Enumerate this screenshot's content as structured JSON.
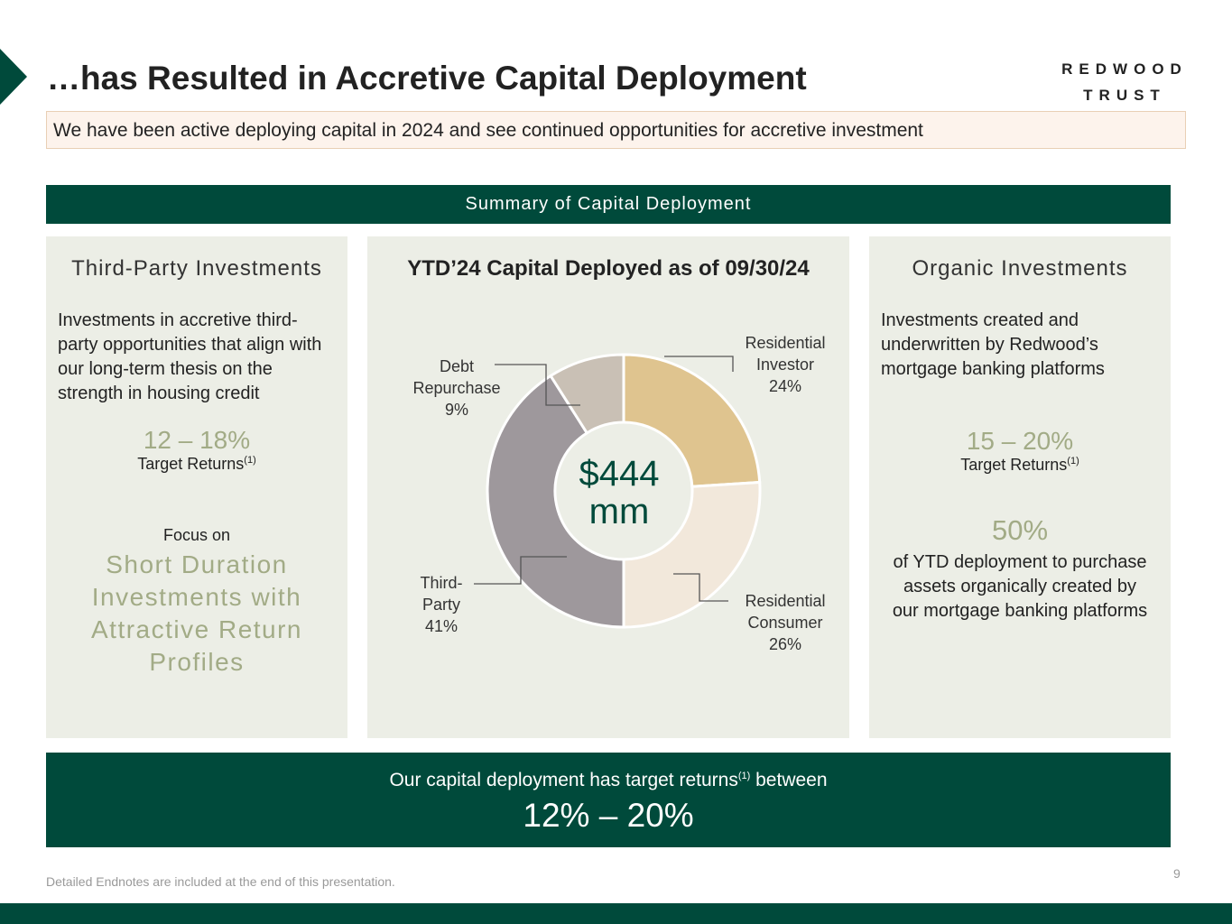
{
  "header": {
    "title": "…has Resulted in Accretive Capital Deployment",
    "logo": "REDWOOD TRUST",
    "logo_line1": "REDWOOD",
    "logo_line2": "TRUST",
    "subtitle": "We have been active deploying capital in 2024 and see continued opportunities for accretive investment"
  },
  "band": "Summary of Capital Deployment",
  "left": {
    "heading": "Third-Party Investments",
    "desc": "Investments in accretive third-party opportunities that align with our long-term thesis on the strength in housing credit",
    "range": "12 – 18%",
    "target": "Target Returns",
    "note": "(1)",
    "focus": "Focus on",
    "focus_big": "Short Duration Investments with Attractive Return Profiles"
  },
  "right": {
    "heading": "Organic Investments",
    "desc": "Investments created and underwritten by Redwood’s mortgage banking platforms",
    "range": "15 – 20%",
    "target": "Target Returns",
    "note": "(1)",
    "pct": "50%",
    "pct_desc": "of YTD deployment to purchase assets organically created by our mortgage banking platforms"
  },
  "chart_data": {
    "type": "pie",
    "title": "YTD’24 Capital Deployed as of 09/30/24",
    "center_line1": "$444",
    "center_line2": "mm",
    "categories": [
      "Residential Investor",
      "Residential Consumer",
      "Third-Party",
      "Debt Repurchase"
    ],
    "values": [
      24,
      26,
      41,
      9
    ],
    "labels": [
      "24%",
      "26%",
      "41%",
      "9%"
    ],
    "colors": [
      "#dfc48f",
      "#f2e8db",
      "#9e989c",
      "#c9c0b5"
    ]
  },
  "bottom": {
    "line1a": "Our capital deployment has target returns",
    "note": "(1)",
    "line1b": " between",
    "range": "12% – 20%"
  },
  "footer": "Detailed Endnotes are included at the end of this presentation.",
  "page": "9"
}
